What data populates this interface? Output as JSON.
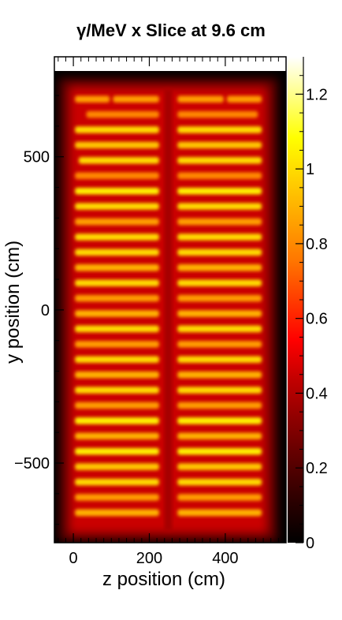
{
  "chart_data": {
    "type": "heatmap",
    "title": "γ/MeV x Slice at 9.6 cm",
    "xlabel": "z position (cm)",
    "ylabel": "y position (cm)",
    "xlim": [
      -50,
      560
    ],
    "ylim": [
      -760,
      780
    ],
    "x_ticks": [
      {
        "value": 0,
        "label": "0"
      },
      {
        "value": 200,
        "label": "200"
      },
      {
        "value": 400,
        "label": "400"
      }
    ],
    "y_ticks": [
      {
        "value": 500,
        "label": "500"
      },
      {
        "value": 0,
        "label": "0"
      },
      {
        "value": -500,
        "label": "−500"
      }
    ],
    "colorbar": {
      "range": [
        0,
        1.3
      ],
      "ticks": [
        {
          "value": 0,
          "label": "0"
        },
        {
          "value": 0.2,
          "label": "0.2"
        },
        {
          "value": 0.4,
          "label": "0.4"
        },
        {
          "value": 0.6,
          "label": "0.6"
        },
        {
          "value": 0.8,
          "label": "0.8"
        },
        {
          "value": 1.0,
          "label": "1"
        },
        {
          "value": 1.2,
          "label": "1.2"
        }
      ],
      "palette": [
        "#000000",
        "#2a0000",
        "#5a0000",
        "#8c0000",
        "#c00000",
        "#ff0000",
        "#ff3c00",
        "#ff7800",
        "#ffa500",
        "#ffd200",
        "#ffff00",
        "#ffff80",
        "#ffffff"
      ]
    },
    "field": {
      "x_range": [
        0,
        500
      ],
      "y_range": [
        -720,
        720
      ],
      "gap_z": 250,
      "band_rows": [
        {
          "y": 688,
          "value": 0.85,
          "segments": [
            [
              0,
              100
            ],
            [
              100,
              230
            ],
            [
              270,
              400
            ],
            [
              400,
              500
            ]
          ]
        },
        {
          "y": 638,
          "value": 0.8,
          "segments": [
            [
              30,
              230
            ],
            [
              270,
              490
            ]
          ]
        },
        {
          "y": 588,
          "value": 1.0,
          "segments": [
            [
              0,
              230
            ],
            [
              270,
              500
            ]
          ]
        },
        {
          "y": 538,
          "value": 0.95,
          "segments": [
            [
              0,
              230
            ],
            [
              270,
              500
            ]
          ]
        },
        {
          "y": 488,
          "value": 1.0,
          "segments": [
            [
              10,
              230
            ],
            [
              270,
              500
            ]
          ]
        },
        {
          "y": 438,
          "value": 0.8,
          "segments": [
            [
              0,
              230
            ],
            [
              270,
              500
            ]
          ]
        },
        {
          "y": 388,
          "value": 1.05,
          "segments": [
            [
              0,
              230
            ],
            [
              270,
              500
            ]
          ]
        },
        {
          "y": 338,
          "value": 1.0,
          "segments": [
            [
              0,
              230
            ],
            [
              270,
              500
            ]
          ]
        },
        {
          "y": 288,
          "value": 0.85,
          "segments": [
            [
              0,
              230
            ],
            [
              270,
              500
            ]
          ]
        },
        {
          "y": 238,
          "value": 1.0,
          "segments": [
            [
              0,
              230
            ],
            [
              270,
              500
            ]
          ]
        },
        {
          "y": 188,
          "value": 1.0,
          "segments": [
            [
              0,
              230
            ],
            [
              270,
              500
            ]
          ]
        },
        {
          "y": 138,
          "value": 0.9,
          "segments": [
            [
              0,
              230
            ],
            [
              270,
              500
            ]
          ]
        },
        {
          "y": 88,
          "value": 1.0,
          "segments": [
            [
              0,
              230
            ],
            [
              270,
              500
            ]
          ]
        },
        {
          "y": 38,
          "value": 0.85,
          "segments": [
            [
              0,
              230
            ],
            [
              270,
              500
            ]
          ]
        },
        {
          "y": -12,
          "value": 0.9,
          "segments": [
            [
              0,
              230
            ],
            [
              270,
              500
            ]
          ]
        },
        {
          "y": -62,
          "value": 1.0,
          "segments": [
            [
              0,
              230
            ],
            [
              270,
              500
            ]
          ]
        },
        {
          "y": -112,
          "value": 0.85,
          "segments": [
            [
              0,
              230
            ],
            [
              270,
              500
            ]
          ]
        },
        {
          "y": -162,
          "value": 1.0,
          "segments": [
            [
              0,
              230
            ],
            [
              270,
              500
            ]
          ]
        },
        {
          "y": -212,
          "value": 0.9,
          "segments": [
            [
              0,
              230
            ],
            [
              270,
              500
            ]
          ]
        },
        {
          "y": -262,
          "value": 1.0,
          "segments": [
            [
              0,
              230
            ],
            [
              270,
              500
            ]
          ]
        },
        {
          "y": -312,
          "value": 0.85,
          "segments": [
            [
              0,
              230
            ],
            [
              270,
              500
            ]
          ]
        },
        {
          "y": -362,
          "value": 1.05,
          "segments": [
            [
              0,
              230
            ],
            [
              270,
              500
            ]
          ]
        },
        {
          "y": -412,
          "value": 0.9,
          "segments": [
            [
              0,
              230
            ],
            [
              270,
              500
            ]
          ]
        },
        {
          "y": -462,
          "value": 1.05,
          "segments": [
            [
              0,
              230
            ],
            [
              270,
              500
            ]
          ]
        },
        {
          "y": -512,
          "value": 0.95,
          "segments": [
            [
              0,
              230
            ],
            [
              270,
              500
            ]
          ]
        },
        {
          "y": -562,
          "value": 1.0,
          "segments": [
            [
              0,
              230
            ],
            [
              270,
              500
            ]
          ]
        },
        {
          "y": -612,
          "value": 0.85,
          "segments": [
            [
              0,
              230
            ],
            [
              270,
              500
            ]
          ]
        },
        {
          "y": -662,
          "value": 0.9,
          "segments": [
            [
              0,
              230
            ],
            [
              270,
              500
            ]
          ]
        }
      ]
    }
  }
}
